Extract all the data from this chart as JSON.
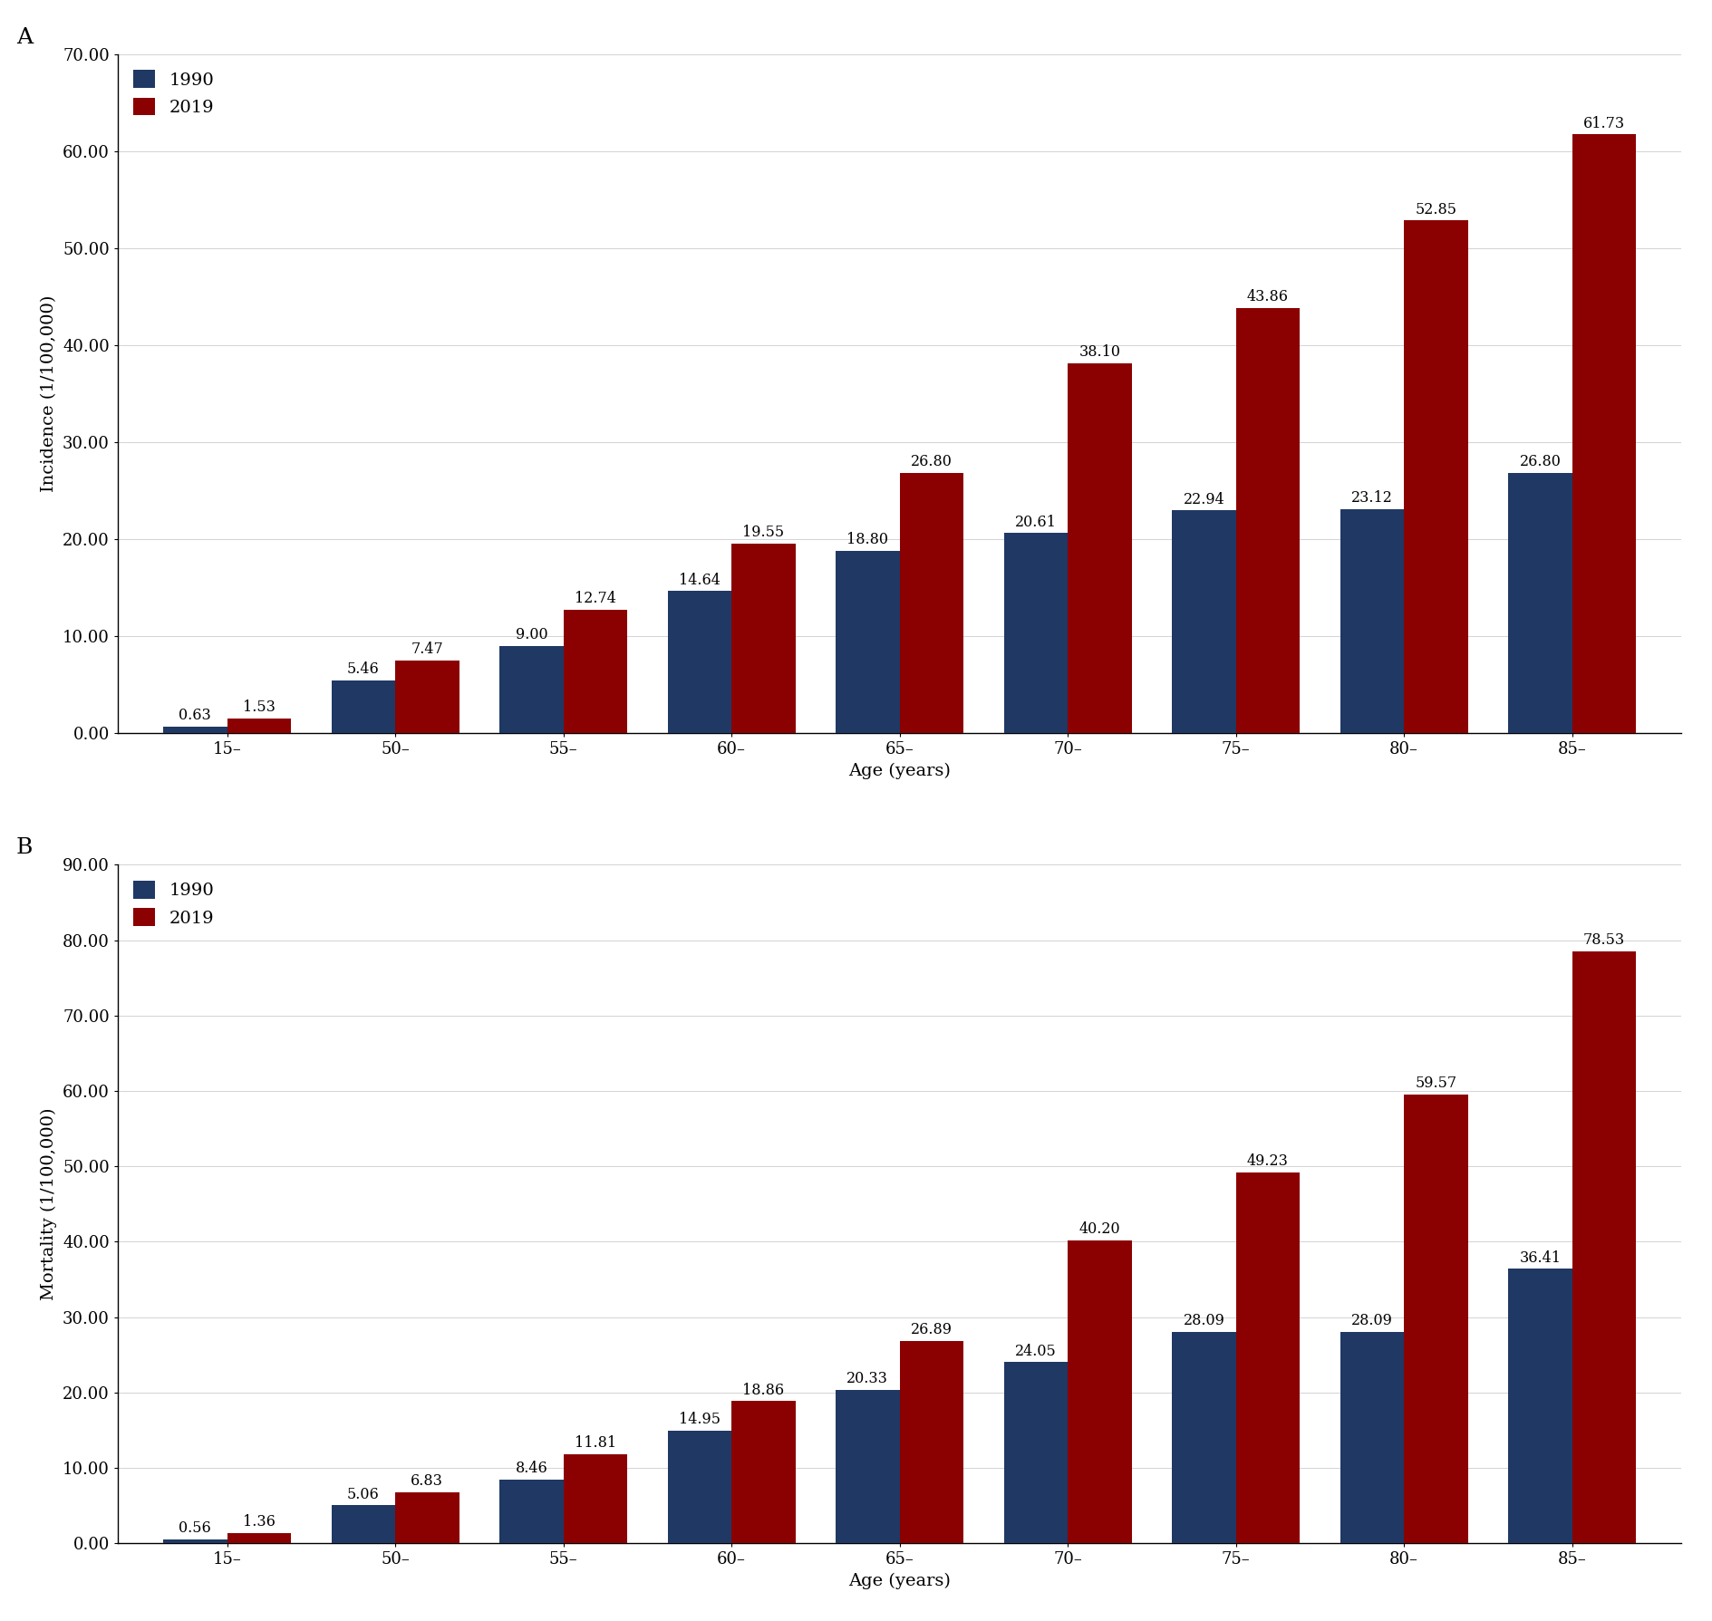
{
  "panel_A": {
    "label": "A",
    "categories": [
      "15–",
      "50–",
      "55–",
      "60–",
      "65–",
      "70–",
      "75–",
      "80–",
      "85–"
    ],
    "values_1990": [
      0.63,
      5.46,
      9.0,
      14.64,
      18.8,
      20.61,
      22.94,
      23.12,
      26.8
    ],
    "values_2019": [
      1.53,
      7.47,
      12.74,
      19.55,
      26.8,
      38.1,
      43.86,
      52.85,
      61.73
    ],
    "labels_1990": [
      "0.63",
      "5.46",
      "9.00",
      "14.64",
      "18.80",
      "20.61",
      "22.94",
      "23.12",
      "26.80"
    ],
    "labels_2019": [
      "1.53",
      "7.47",
      "12.74",
      "19.55",
      "26.80",
      "38.10",
      "43.86",
      "52.85",
      "61.73"
    ],
    "ylabel": "Incidence (1/100,000)",
    "xlabel": "Age (years)",
    "ylim": [
      0,
      70
    ],
    "yticks": [
      0,
      10,
      20,
      30,
      40,
      50,
      60,
      70
    ],
    "ytick_labels": [
      "0.00",
      "10.00",
      "20.00",
      "30.00",
      "40.00",
      "50.00",
      "60.00",
      "70.00"
    ]
  },
  "panel_B": {
    "label": "B",
    "categories": [
      "15–",
      "50–",
      "55–",
      "60–",
      "65–",
      "70–",
      "75–",
      "80–",
      "85–"
    ],
    "values_1990": [
      0.56,
      5.06,
      8.46,
      14.95,
      20.33,
      24.05,
      28.09,
      28.09,
      36.41
    ],
    "values_2019": [
      1.36,
      6.83,
      11.81,
      18.86,
      26.89,
      40.2,
      49.23,
      59.57,
      78.53
    ],
    "labels_1990": [
      "0.56",
      "5.06",
      "8.46",
      "14.95",
      "20.33",
      "24.05",
      "28.09",
      "28.09",
      "36.41"
    ],
    "labels_2019": [
      "1.36",
      "6.83",
      "11.81",
      "18.86",
      "26.89",
      "40.20",
      "49.23",
      "59.57",
      "78.53"
    ],
    "ylabel": "Mortality (1/100,000)",
    "xlabel": "Age (years)",
    "ylim": [
      0,
      90
    ],
    "yticks": [
      0,
      10,
      20,
      30,
      40,
      50,
      60,
      70,
      80,
      90
    ],
    "ytick_labels": [
      "0.00",
      "10.00",
      "20.00",
      "30.00",
      "40.00",
      "50.00",
      "60.00",
      "70.00",
      "80.00",
      "90.00"
    ]
  },
  "color_1990": "#1f3864",
  "color_2019": "#8b0000",
  "bar_width": 0.38,
  "background_color": "#ffffff",
  "label_fontsize": 14,
  "axis_label_fontsize": 14,
  "tick_fontsize": 13,
  "bar_label_fontsize": 11.5,
  "panel_label_fontsize": 18
}
